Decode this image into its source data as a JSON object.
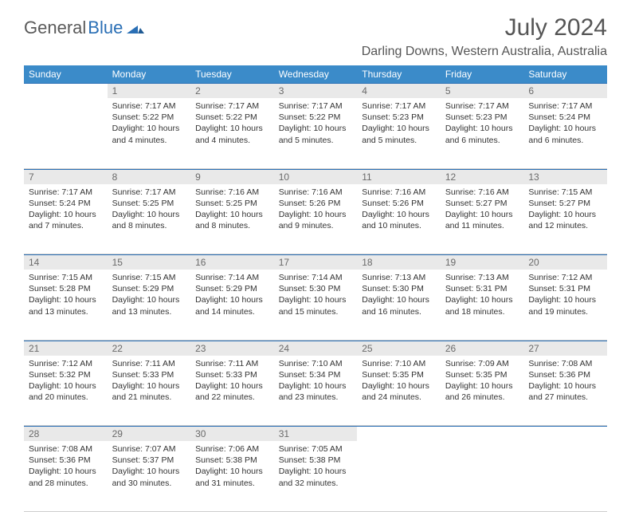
{
  "brand": {
    "part1": "General",
    "part2": "Blue"
  },
  "title": "July 2024",
  "location": "Darling Downs, Western Australia, Australia",
  "colors": {
    "header_bg": "#3b8bc9",
    "accent": "#2a6fb5",
    "daynum_bg": "#e9e9e9",
    "text": "#333333",
    "muted": "#6a6a6a"
  },
  "weekdays": [
    "Sunday",
    "Monday",
    "Tuesday",
    "Wednesday",
    "Thursday",
    "Friday",
    "Saturday"
  ],
  "weeks": [
    [
      null,
      {
        "n": "1",
        "sunrise": "7:17 AM",
        "sunset": "5:22 PM",
        "daylight": "10 hours and 4 minutes."
      },
      {
        "n": "2",
        "sunrise": "7:17 AM",
        "sunset": "5:22 PM",
        "daylight": "10 hours and 4 minutes."
      },
      {
        "n": "3",
        "sunrise": "7:17 AM",
        "sunset": "5:22 PM",
        "daylight": "10 hours and 5 minutes."
      },
      {
        "n": "4",
        "sunrise": "7:17 AM",
        "sunset": "5:23 PM",
        "daylight": "10 hours and 5 minutes."
      },
      {
        "n": "5",
        "sunrise": "7:17 AM",
        "sunset": "5:23 PM",
        "daylight": "10 hours and 6 minutes."
      },
      {
        "n": "6",
        "sunrise": "7:17 AM",
        "sunset": "5:24 PM",
        "daylight": "10 hours and 6 minutes."
      }
    ],
    [
      {
        "n": "7",
        "sunrise": "7:17 AM",
        "sunset": "5:24 PM",
        "daylight": "10 hours and 7 minutes."
      },
      {
        "n": "8",
        "sunrise": "7:17 AM",
        "sunset": "5:25 PM",
        "daylight": "10 hours and 8 minutes."
      },
      {
        "n": "9",
        "sunrise": "7:16 AM",
        "sunset": "5:25 PM",
        "daylight": "10 hours and 8 minutes."
      },
      {
        "n": "10",
        "sunrise": "7:16 AM",
        "sunset": "5:26 PM",
        "daylight": "10 hours and 9 minutes."
      },
      {
        "n": "11",
        "sunrise": "7:16 AM",
        "sunset": "5:26 PM",
        "daylight": "10 hours and 10 minutes."
      },
      {
        "n": "12",
        "sunrise": "7:16 AM",
        "sunset": "5:27 PM",
        "daylight": "10 hours and 11 minutes."
      },
      {
        "n": "13",
        "sunrise": "7:15 AM",
        "sunset": "5:27 PM",
        "daylight": "10 hours and 12 minutes."
      }
    ],
    [
      {
        "n": "14",
        "sunrise": "7:15 AM",
        "sunset": "5:28 PM",
        "daylight": "10 hours and 13 minutes."
      },
      {
        "n": "15",
        "sunrise": "7:15 AM",
        "sunset": "5:29 PM",
        "daylight": "10 hours and 13 minutes."
      },
      {
        "n": "16",
        "sunrise": "7:14 AM",
        "sunset": "5:29 PM",
        "daylight": "10 hours and 14 minutes."
      },
      {
        "n": "17",
        "sunrise": "7:14 AM",
        "sunset": "5:30 PM",
        "daylight": "10 hours and 15 minutes."
      },
      {
        "n": "18",
        "sunrise": "7:13 AM",
        "sunset": "5:30 PM",
        "daylight": "10 hours and 16 minutes."
      },
      {
        "n": "19",
        "sunrise": "7:13 AM",
        "sunset": "5:31 PM",
        "daylight": "10 hours and 18 minutes."
      },
      {
        "n": "20",
        "sunrise": "7:12 AM",
        "sunset": "5:31 PM",
        "daylight": "10 hours and 19 minutes."
      }
    ],
    [
      {
        "n": "21",
        "sunrise": "7:12 AM",
        "sunset": "5:32 PM",
        "daylight": "10 hours and 20 minutes."
      },
      {
        "n": "22",
        "sunrise": "7:11 AM",
        "sunset": "5:33 PM",
        "daylight": "10 hours and 21 minutes."
      },
      {
        "n": "23",
        "sunrise": "7:11 AM",
        "sunset": "5:33 PM",
        "daylight": "10 hours and 22 minutes."
      },
      {
        "n": "24",
        "sunrise": "7:10 AM",
        "sunset": "5:34 PM",
        "daylight": "10 hours and 23 minutes."
      },
      {
        "n": "25",
        "sunrise": "7:10 AM",
        "sunset": "5:35 PM",
        "daylight": "10 hours and 24 minutes."
      },
      {
        "n": "26",
        "sunrise": "7:09 AM",
        "sunset": "5:35 PM",
        "daylight": "10 hours and 26 minutes."
      },
      {
        "n": "27",
        "sunrise": "7:08 AM",
        "sunset": "5:36 PM",
        "daylight": "10 hours and 27 minutes."
      }
    ],
    [
      {
        "n": "28",
        "sunrise": "7:08 AM",
        "sunset": "5:36 PM",
        "daylight": "10 hours and 28 minutes."
      },
      {
        "n": "29",
        "sunrise": "7:07 AM",
        "sunset": "5:37 PM",
        "daylight": "10 hours and 30 minutes."
      },
      {
        "n": "30",
        "sunrise": "7:06 AM",
        "sunset": "5:38 PM",
        "daylight": "10 hours and 31 minutes."
      },
      {
        "n": "31",
        "sunrise": "7:05 AM",
        "sunset": "5:38 PM",
        "daylight": "10 hours and 32 minutes."
      },
      null,
      null,
      null
    ]
  ],
  "labels": {
    "sunrise": "Sunrise:",
    "sunset": "Sunset:",
    "daylight": "Daylight:"
  }
}
